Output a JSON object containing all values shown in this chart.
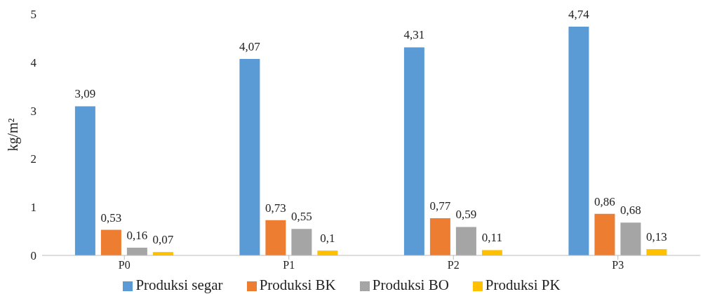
{
  "chart_data": {
    "type": "bar",
    "ylabel": "kg/m²",
    "categories": [
      "P0",
      "P1",
      "P2",
      "P3"
    ],
    "series": [
      {
        "name": "Produksi segar",
        "color": "#5b9bd5",
        "values": [
          3.09,
          4.07,
          4.31,
          4.74
        ],
        "value_labels": [
          "3,09",
          "4,07",
          "4,31",
          "4,74"
        ]
      },
      {
        "name": "Produksi BK",
        "color": "#ed7d31",
        "values": [
          0.53,
          0.73,
          0.77,
          0.86
        ],
        "value_labels": [
          "0,53",
          "0,73",
          "0,77",
          "0,86"
        ]
      },
      {
        "name": "Produksi BO",
        "color": "#a5a5a5",
        "values": [
          0.16,
          0.55,
          0.59,
          0.68
        ],
        "value_labels": [
          "0,16",
          "0,55",
          "0,59",
          "0,68"
        ]
      },
      {
        "name": "Produksi PK",
        "color": "#ffc000",
        "values": [
          0.07,
          0.1,
          0.11,
          0.13
        ],
        "value_labels": [
          "0,07",
          "0,1",
          "0,11",
          "0,13"
        ]
      }
    ],
    "ylim": [
      0,
      5
    ],
    "yticks": [
      0,
      1,
      2,
      3,
      4,
      5
    ],
    "grid": false,
    "legend": "bottom"
  }
}
